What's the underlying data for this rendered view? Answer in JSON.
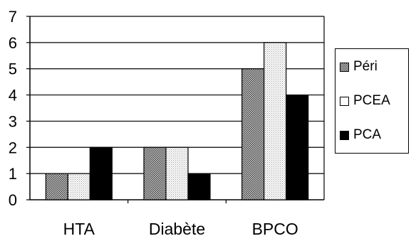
{
  "chart_data": {
    "type": "bar",
    "categories": [
      "HTA",
      "Diabète",
      "BPCO"
    ],
    "series": [
      {
        "name": "Péri",
        "values": [
          1,
          2,
          5
        ],
        "fill": "pattern-dots-grey"
      },
      {
        "name": "PCEA",
        "values": [
          1,
          2,
          6
        ],
        "fill": "pattern-dots-light"
      },
      {
        "name": "PCA",
        "values": [
          2,
          1,
          4
        ],
        "fill": "#000000"
      }
    ],
    "yticks": [
      "0",
      "1",
      "2",
      "3",
      "4",
      "5",
      "6",
      "7"
    ],
    "ylim": [
      0,
      7
    ],
    "grid": true,
    "legend_position": "right",
    "title": "",
    "xlabel": "",
    "ylabel": ""
  }
}
